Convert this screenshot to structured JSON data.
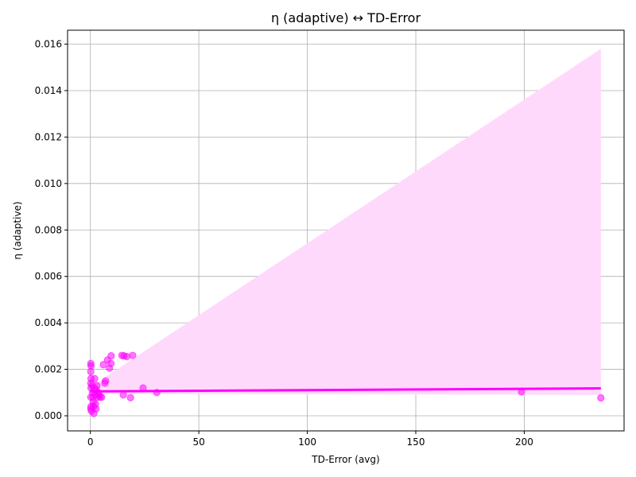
{
  "chart_data": {
    "type": "scatter",
    "title": "η (adaptive) ↔ TD-Error",
    "xlabel": "TD-Error (avg)",
    "ylabel": "η (adaptive)",
    "xlim": [
      -10.5,
      246
    ],
    "ylim": [
      -0.00065,
      0.0166
    ],
    "xticks": [
      0,
      50,
      100,
      150,
      200
    ],
    "xtick_labels": [
      "0",
      "50",
      "100",
      "150",
      "200"
    ],
    "yticks": [
      0.0,
      0.002,
      0.004,
      0.006,
      0.008,
      0.01,
      0.012,
      0.014,
      0.016
    ],
    "ytick_labels": [
      "0.000",
      "0.002",
      "0.004",
      "0.006",
      "0.008",
      "0.010",
      "0.012",
      "0.014",
      "0.016"
    ],
    "grid": true,
    "colors": {
      "points": "#ff00ff",
      "regression_line": "#ff00ff",
      "confidence_band": "#ffd9fb",
      "grid": "#b0b0b0",
      "axes": "#000000"
    },
    "points": [
      {
        "x": 0.2,
        "y": 0.00225
      },
      {
        "x": 0.3,
        "y": 0.00215
      },
      {
        "x": 0.2,
        "y": 0.0019
      },
      {
        "x": 0.3,
        "y": 0.0016
      },
      {
        "x": 0.2,
        "y": 0.0014
      },
      {
        "x": 0.3,
        "y": 0.0012
      },
      {
        "x": 0.2,
        "y": 0.0008
      },
      {
        "x": 0.3,
        "y": 0.0004
      },
      {
        "x": 0.2,
        "y": 0.0003
      },
      {
        "x": 0.5,
        "y": 0.0002
      },
      {
        "x": 0.8,
        "y": 0.0013
      },
      {
        "x": 1.0,
        "y": 0.001
      },
      {
        "x": 1.2,
        "y": 0.0008
      },
      {
        "x": 1.3,
        "y": 0.0006
      },
      {
        "x": 1.5,
        "y": 0.0004
      },
      {
        "x": 1.6,
        "y": 0.0001
      },
      {
        "x": 1.8,
        "y": 0.0012
      },
      {
        "x": 2.0,
        "y": 0.0016
      },
      {
        "x": 2.2,
        "y": 0.0009
      },
      {
        "x": 2.4,
        "y": 0.0005
      },
      {
        "x": 2.6,
        "y": 0.0003
      },
      {
        "x": 2.8,
        "y": 0.0011
      },
      {
        "x": 3.0,
        "y": 0.0013
      },
      {
        "x": 3.2,
        "y": 0.0008
      },
      {
        "x": 3.5,
        "y": 0.001
      },
      {
        "x": 4.0,
        "y": 0.0009
      },
      {
        "x": 4.5,
        "y": 0.0008
      },
      {
        "x": 5.2,
        "y": 0.0008
      },
      {
        "x": 6.0,
        "y": 0.0022
      },
      {
        "x": 6.7,
        "y": 0.0014
      },
      {
        "x": 7.0,
        "y": 0.0015
      },
      {
        "x": 7.9,
        "y": 0.0024
      },
      {
        "x": 8.8,
        "y": 0.00205
      },
      {
        "x": 9.5,
        "y": 0.00225
      },
      {
        "x": 9.6,
        "y": 0.00258
      },
      {
        "x": 14.5,
        "y": 0.0026
      },
      {
        "x": 15.5,
        "y": 0.00258
      },
      {
        "x": 15.2,
        "y": 0.0009
      },
      {
        "x": 16.8,
        "y": 0.00255
      },
      {
        "x": 18.5,
        "y": 0.00078
      },
      {
        "x": 19.5,
        "y": 0.0026
      },
      {
        "x": 24.3,
        "y": 0.0012
      },
      {
        "x": 30.6,
        "y": 0.001
      },
      {
        "x": 198.7,
        "y": 0.00103
      },
      {
        "x": 235.3,
        "y": 0.00077
      }
    ],
    "regression": {
      "x": [
        0.2,
        235.3
      ],
      "y": [
        0.00105,
        0.00118
      ]
    },
    "confidence_band": {
      "x": [
        0.2,
        235.3
      ],
      "upper": [
        0.00125,
        0.0158
      ],
      "lower": [
        0.00095,
        0.0009
      ]
    }
  }
}
